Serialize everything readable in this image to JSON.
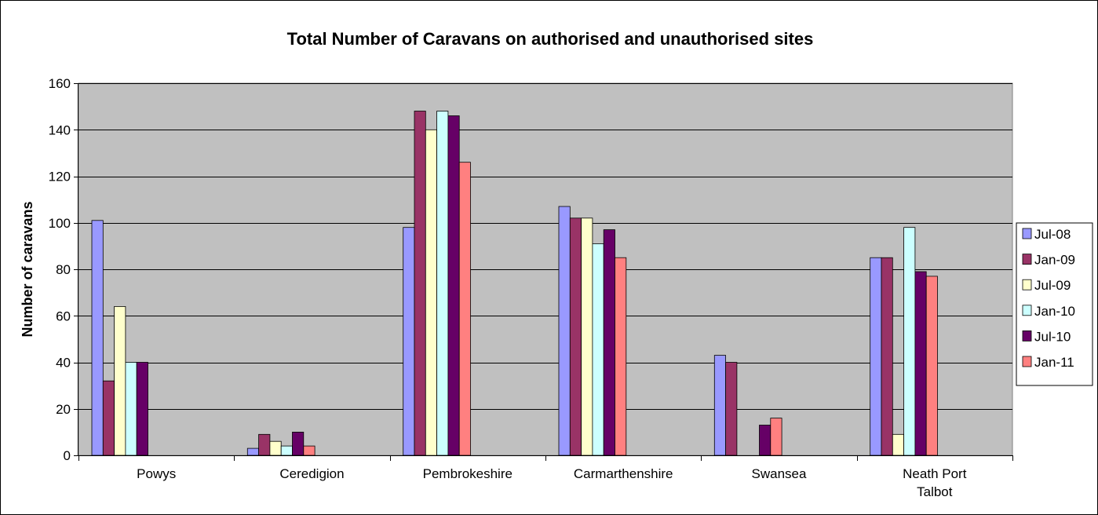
{
  "chart_data": {
    "type": "bar",
    "title": "Total Number of Caravans on authorised and unauthorised sites",
    "xlabel": "",
    "ylabel": "Number of caravans",
    "ylim": [
      0,
      160
    ],
    "yticks": [
      0,
      20,
      40,
      60,
      80,
      100,
      120,
      140,
      160
    ],
    "grid": true,
    "legend_position": "right",
    "categories": [
      "Powys",
      "Ceredigion",
      "Pembrokeshire",
      "Carmarthenshire",
      "Swansea",
      "Neath Port Talbot"
    ],
    "series": [
      {
        "name": "Jul-08",
        "color": "#9999ff",
        "values": [
          101,
          3,
          98,
          107,
          43,
          85
        ]
      },
      {
        "name": "Jan-09",
        "color": "#993366",
        "values": [
          32,
          9,
          148,
          102,
          40,
          85
        ]
      },
      {
        "name": "Jul-09",
        "color": "#ffffcc",
        "values": [
          64,
          6,
          140,
          102,
          0,
          9
        ]
      },
      {
        "name": "Jan-10",
        "color": "#ccffff",
        "values": [
          40,
          4,
          148,
          91,
          0,
          98
        ]
      },
      {
        "name": "Jul-10",
        "color": "#660066",
        "values": [
          40,
          10,
          146,
          97,
          13,
          79
        ]
      },
      {
        "name": "Jan-11",
        "color": "#ff8080",
        "values": [
          0,
          4,
          126,
          85,
          16,
          77
        ]
      }
    ],
    "plot_background": "#c0c0c0"
  }
}
